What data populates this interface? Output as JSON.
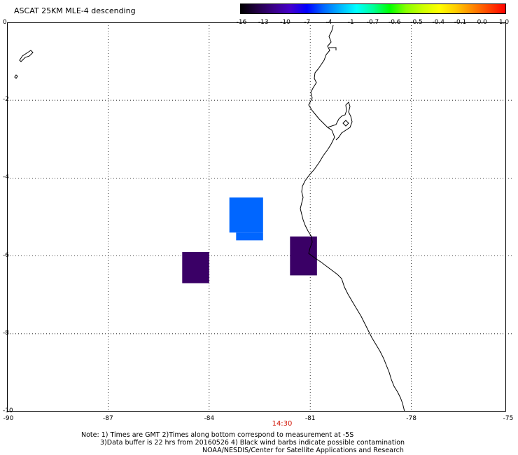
{
  "title": "ASCAT 25KM MLE-4 descending",
  "colorbar": {
    "colors": [
      "#000000",
      "#220044",
      "#3a0088",
      "#4400cc",
      "#0000ff",
      "#0066ff",
      "#00b4ff",
      "#00ffff",
      "#00ff99",
      "#00ff00",
      "#88ff00",
      "#ccff00",
      "#ffff00",
      "#ffcc00",
      "#ff8800",
      "#ff4400",
      "#ff0000"
    ],
    "labels": [
      "-16",
      "-13",
      "-10",
      "-7",
      "-4",
      "-1",
      "-0.7",
      "-0.6",
      "-0.5",
      "-0.4",
      "-0.1",
      "0.0",
      "1.0"
    ]
  },
  "axes": {
    "lat_labels": [
      "0",
      "-2",
      "-4",
      "-6",
      "-8",
      "-10"
    ],
    "lon_labels": [
      "-90",
      "-87",
      "-84",
      "-81",
      "-78",
      "-75"
    ],
    "lat_range": [
      -10,
      0
    ],
    "lon_range": [
      -90,
      -75
    ],
    "grid": "dotted"
  },
  "time_label": "14:30",
  "cells": [
    {
      "lon": [
        -83.4,
        -82.4
      ],
      "lat": [
        -4.5,
        -5.4
      ],
      "color": "#0066ff"
    },
    {
      "lon": [
        -83.2,
        -82.4
      ],
      "lat": [
        -5.4,
        -5.6
      ],
      "color": "#0066ff"
    },
    {
      "lon": [
        -81.6,
        -80.8
      ],
      "lat": [
        -5.5,
        -6.5
      ],
      "color": "#3a0066"
    },
    {
      "lon": [
        -84.8,
        -84.0
      ],
      "lat": [
        -5.9,
        -6.7
      ],
      "color": "#3a0066"
    }
  ],
  "notes": {
    "line1": "Note: 1) Times are GMT 2)Times along bottom correspond to measurement at -5S",
    "line2": "3)Data buffer is 22 hrs from 20160526 4) Black wind barbs indicate possible contamination",
    "line3": "NOAA/NESDIS/Center for Satellite Applications and Research"
  }
}
